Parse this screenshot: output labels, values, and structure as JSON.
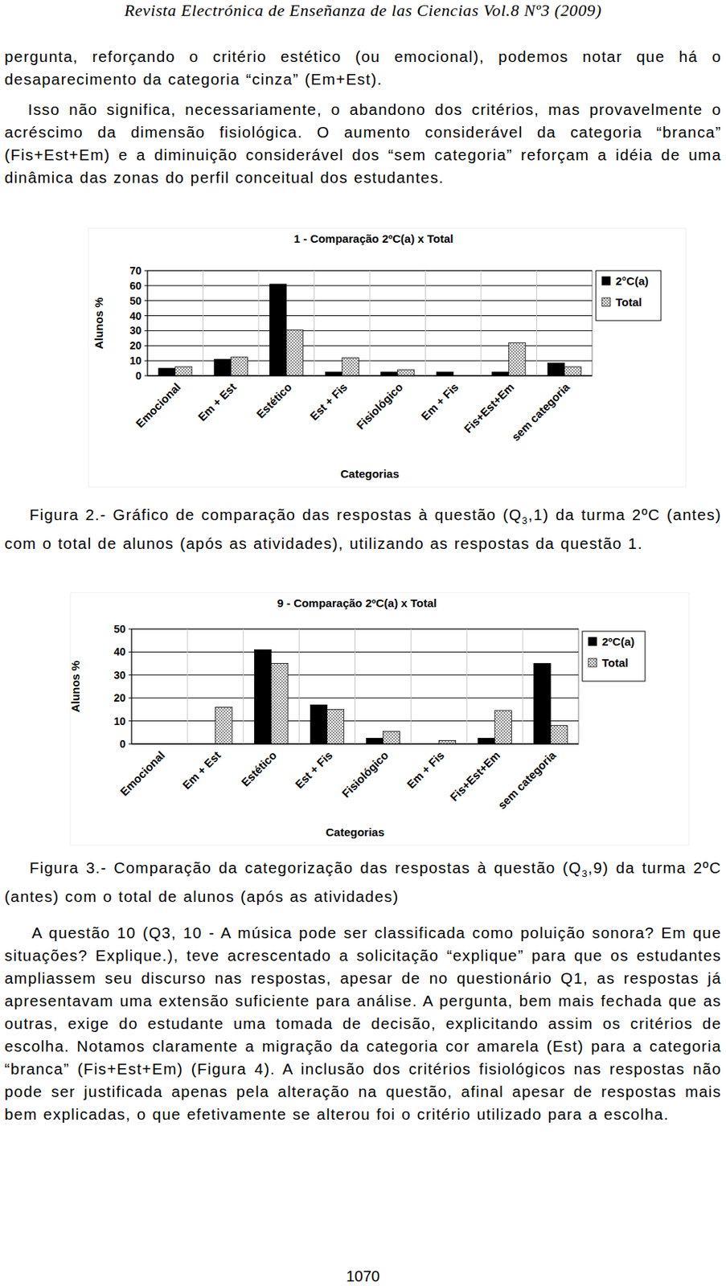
{
  "header": "Revista Electrónica de Enseñanza de las Ciencias Vol.8 Nº3 (2009)",
  "paragraphs_top": [
    "pergunta, reforçando o critério estético (ou emocional), podemos notar que há o desaparecimento da categoria “cinza” (Em+Est).",
    "Isso não significa, necessariamente, o abandono dos critérios, mas provavelmente o acréscimo da dimensão fisiológica. O aumento considerável da categoria “branca” (Fis+Est+Em) e a diminuição considerável dos “sem categoria” reforçam a idéia de uma dinâmica das zonas do perfil conceitual dos estudantes."
  ],
  "chart_data": [
    {
      "type": "bar",
      "title": "1 - Comparação 2ºC(a) x Total",
      "x_label": "Categorias",
      "y_label": "Alunos %",
      "categories": [
        "Emocional",
        "Em + Est",
        "Estético",
        "Est + Fis",
        "Fisiológico",
        "Em + Fis",
        "Fis+Est+Em",
        "sem categoria"
      ],
      "series": [
        {
          "name": "2°C(a)",
          "color": "#000000",
          "values": [
            5,
            11,
            61,
            2.5,
            2.5,
            2.5,
            2.5,
            8.5
          ]
        },
        {
          "name": "Total",
          "color": "#8c8c8c",
          "values": [
            6,
            12.5,
            30.5,
            12,
            4,
            0,
            22,
            6
          ]
        }
      ],
      "ylim": [
        0,
        70
      ],
      "yticks": [
        0,
        10,
        20,
        30,
        40,
        50,
        60,
        70
      ],
      "grid": true,
      "legend": "right"
    },
    {
      "type": "bar",
      "title": "9 - Comparação 2ºC(a) x Total",
      "x_label": "Categorias",
      "y_label": "Alunos %",
      "categories": [
        "Emocional",
        "Em + Est",
        "Estético",
        "Est + Fis",
        "Fisiológico",
        "Em + Fis",
        "Fis+Est+Em",
        "sem categoria"
      ],
      "series": [
        {
          "name": "2ºC(a)",
          "color": "#000000",
          "values": [
            0,
            0,
            41,
            17,
            2.5,
            0,
            2.5,
            35
          ]
        },
        {
          "name": "Total",
          "color": "#8c8c8c",
          "values": [
            0,
            16,
            35,
            15,
            5.5,
            1.5,
            14.5,
            8
          ]
        }
      ],
      "ylim": [
        0,
        50
      ],
      "yticks": [
        0,
        10,
        20,
        30,
        40,
        50
      ],
      "grid": true,
      "legend": "right"
    }
  ],
  "captions": [
    {
      "before": "Figura 2.- Gráfico de comparação das respostas à questão (Q",
      "sub": "3",
      "after": ",1) da turma 2ºC (antes) com o total de alunos (após as atividades), utilizando as respostas da questão 1."
    },
    {
      "before": "Figura 3.- Comparação da categorização das respostas à questão (Q",
      "sub": "3",
      "after": ",9) da turma 2ºC (antes) com o total de alunos (após as atividades)"
    }
  ],
  "paragraphs_bottom": [
    "A questão 10 (Q3, 10 - A música pode ser classificada como poluição sonora? Em que situações? Explique.), teve acrescentado a solicitação “explique” para que os estudantes ampliassem seu discurso nas respostas, apesar de no questionário Q1, as respostas já apresentavam uma extensão suficiente para análise. A pergunta, bem mais fechada que as outras, exige do estudante uma tomada de decisão, explicitando assim os critérios de escolha. Notamos claramente a migração da categoria cor amarela (Est) para a categoria “branca” (Fis+Est+Em) (Figura 4). A inclusão dos critérios fisiológicos nas respostas não pode ser justificada apenas pela alteração na questão, afinal apesar de respostas mais bem explicadas, o que efetivamente se alterou foi o critério utilizado para a escolha."
  ],
  "page_number": "1070"
}
